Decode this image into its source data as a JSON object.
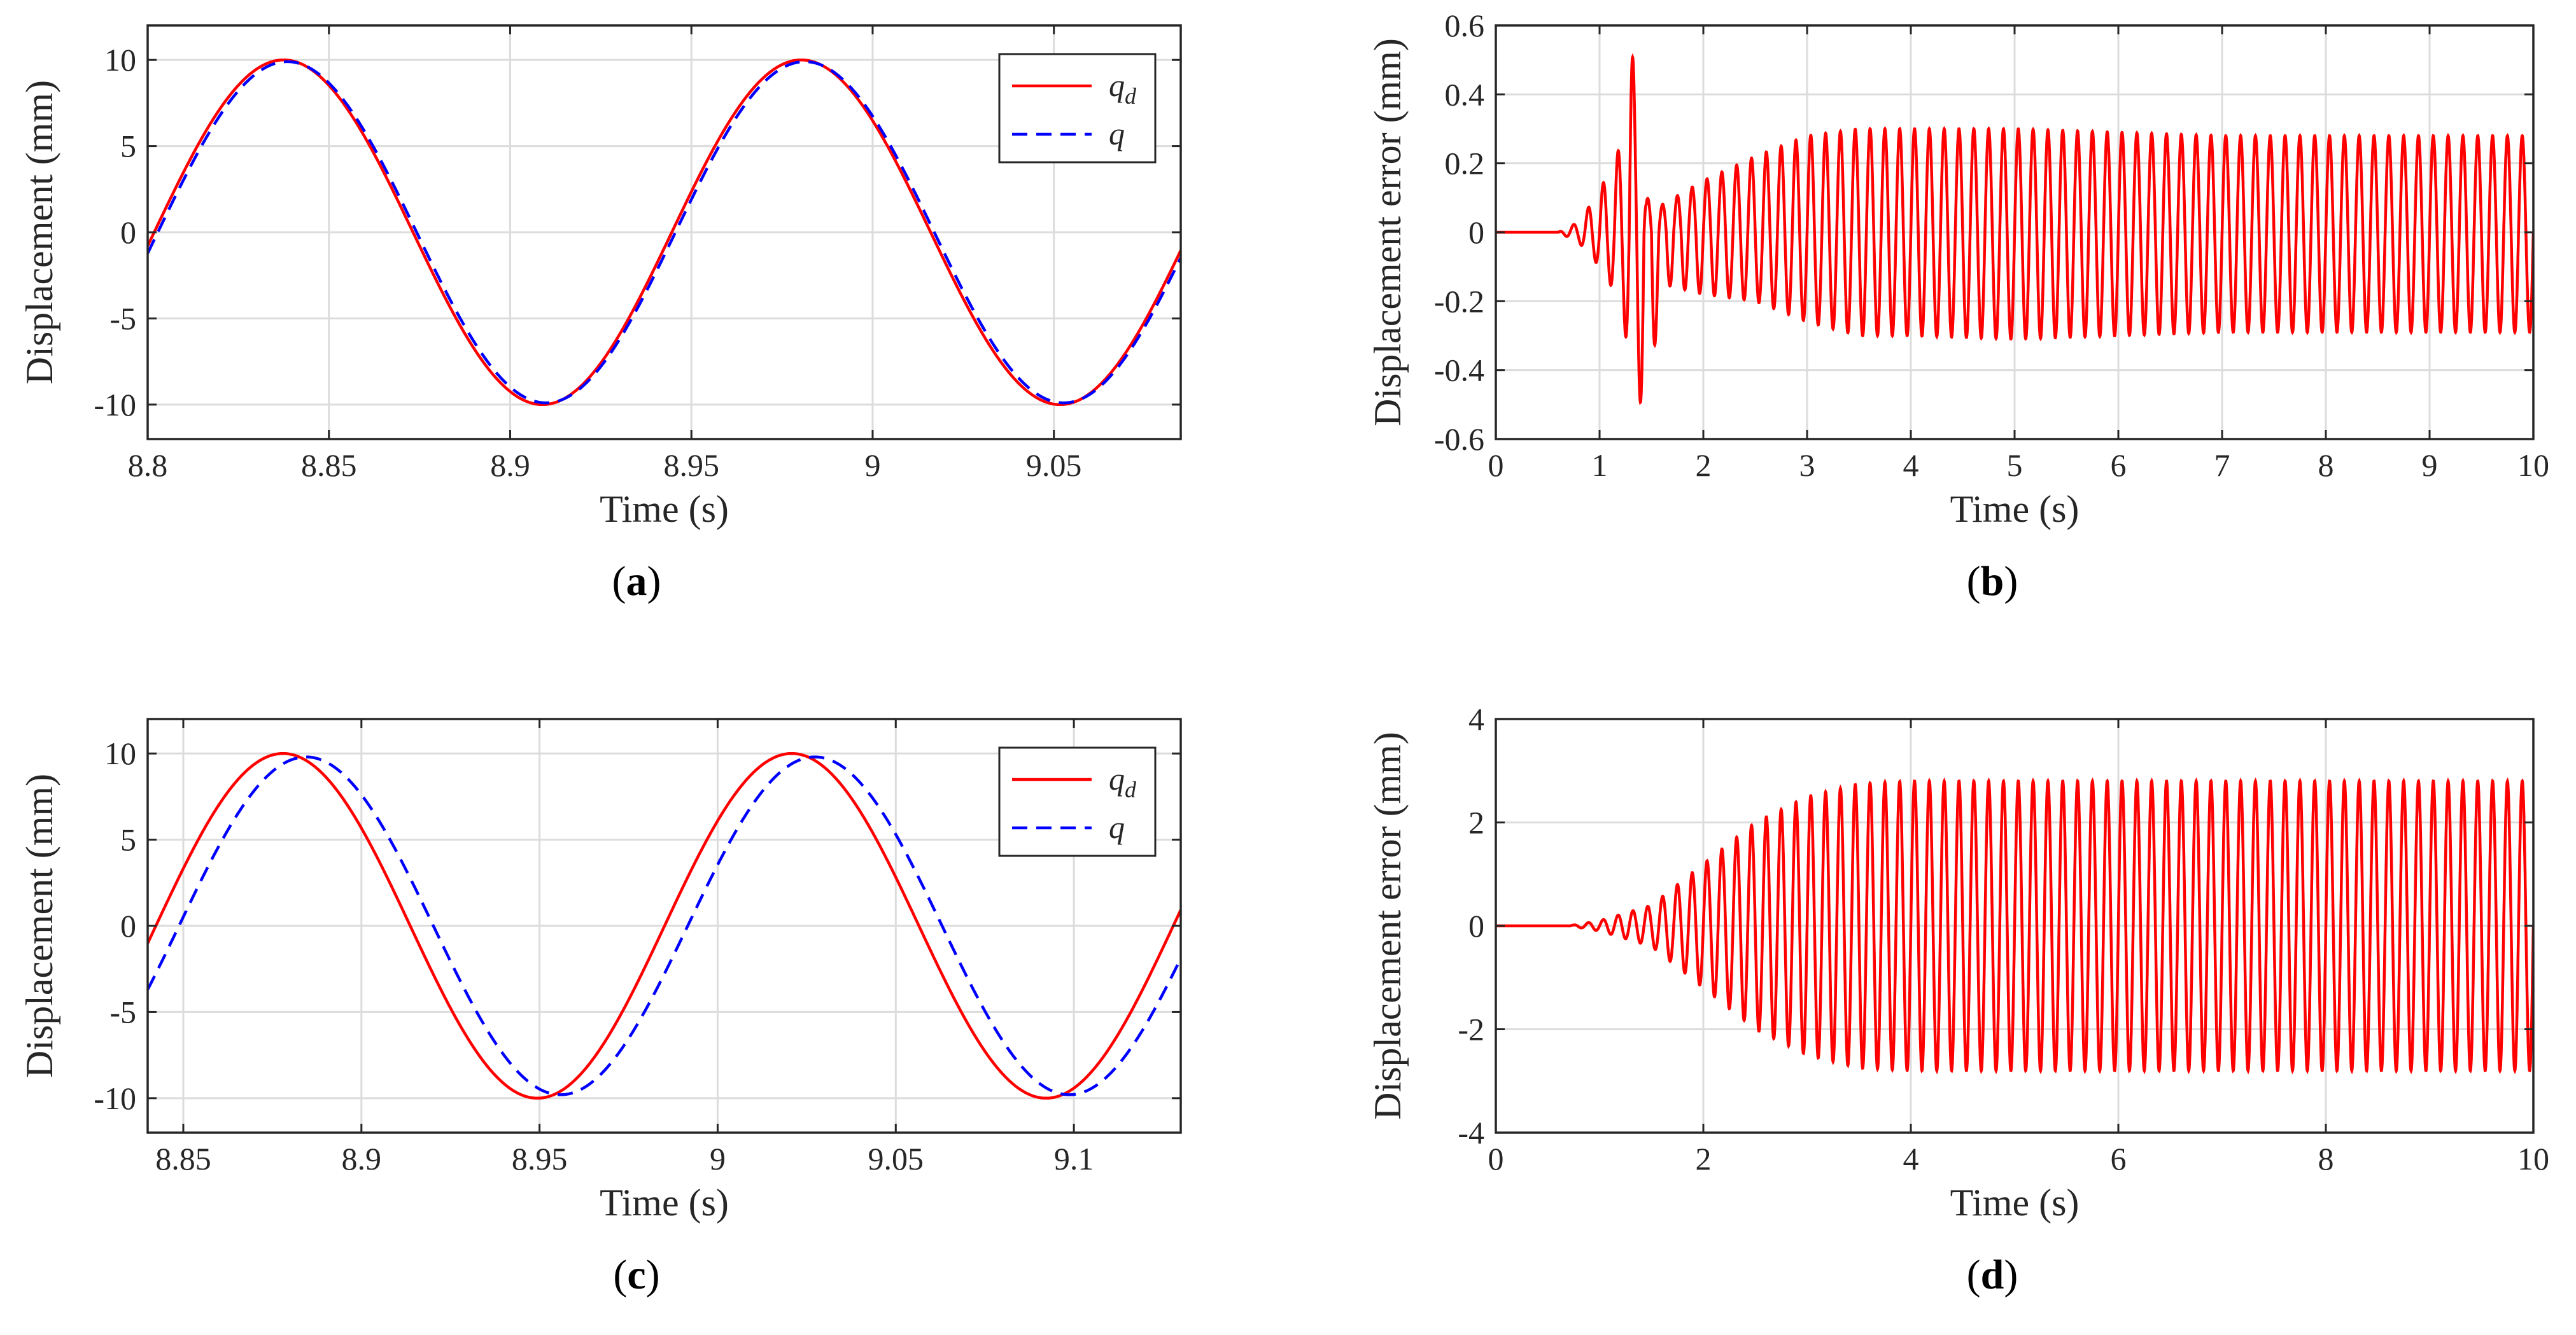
{
  "chart_data": [
    {
      "type": "line",
      "caption_letter": "a",
      "xlabel": "Time (s)",
      "ylabel": "Displacement (mm)",
      "xlim": [
        8.8,
        9.085
      ],
      "ylim": [
        -12,
        12
      ],
      "xticks": [
        8.8,
        8.85,
        8.9,
        8.95,
        9,
        9.05
      ],
      "yticks": [
        -10,
        -5,
        0,
        5,
        10
      ],
      "grid": true,
      "legend": {
        "position": "top-right",
        "entries": [
          {
            "label": "q",
            "subscript": "d"
          },
          {
            "label": "q",
            "subscript": ""
          }
        ]
      },
      "series": [
        {
          "name": "q_d",
          "color": "#ff0000",
          "style": "solid",
          "kind": "sine",
          "amplitude": 10,
          "period": 0.1428,
          "peak_time": 8.8375
        },
        {
          "name": "q",
          "color": "#0000ff",
          "style": "dashed",
          "kind": "sine",
          "amplitude": 9.9,
          "period": 0.1428,
          "peak_time": 8.8385
        }
      ]
    },
    {
      "type": "line",
      "caption_letter": "b",
      "xlabel": "Time (s)",
      "ylabel": "Displacement error (mm)",
      "xlim": [
        0,
        10
      ],
      "ylim": [
        -0.6,
        0.6
      ],
      "xticks": [
        0,
        1,
        2,
        3,
        4,
        5,
        6,
        7,
        8,
        9,
        10
      ],
      "yticks": [
        -0.6,
        -0.4,
        -0.2,
        0,
        0.2,
        0.4,
        0.6
      ],
      "grid": true,
      "series": [
        {
          "name": "error",
          "color": "#ff0000",
          "style": "solid",
          "kind": "envelope_osc",
          "frequency": 7,
          "envelope_t": [
            0,
            0.6,
            0.8,
            1.0,
            1.2,
            1.3,
            1.45,
            1.6,
            2.0,
            2.5,
            3.0,
            3.5,
            4.0,
            5.0,
            6.0,
            7.0,
            8.0,
            9.0,
            10.0
          ],
          "envelope_upper": [
            0,
            0,
            0.03,
            0.12,
            0.25,
            0.57,
            0.1,
            0.08,
            0.15,
            0.22,
            0.28,
            0.3,
            0.3,
            0.3,
            0.29,
            0.28,
            0.28,
            0.28,
            0.28
          ],
          "envelope_lower": [
            0,
            0,
            -0.03,
            -0.1,
            -0.2,
            -0.4,
            -0.55,
            -0.15,
            -0.18,
            -0.2,
            -0.26,
            -0.3,
            -0.3,
            -0.31,
            -0.3,
            -0.29,
            -0.29,
            -0.29,
            -0.29
          ]
        }
      ]
    },
    {
      "type": "line",
      "caption_letter": "c",
      "xlabel": "Time (s)",
      "ylabel": "Displacement (mm)",
      "xlim": [
        8.84,
        9.13
      ],
      "ylim": [
        -12,
        12
      ],
      "xticks": [
        8.85,
        8.9,
        8.95,
        9,
        9.05,
        9.1
      ],
      "yticks": [
        -10,
        -5,
        0,
        5,
        10
      ],
      "grid": true,
      "legend": {
        "position": "top-right",
        "entries": [
          {
            "label": "q",
            "subscript": "d"
          },
          {
            "label": "q",
            "subscript": ""
          }
        ]
      },
      "series": [
        {
          "name": "q_d",
          "color": "#ff0000",
          "style": "solid",
          "kind": "sine",
          "amplitude": 10,
          "period": 0.1428,
          "peak_time": 8.878
        },
        {
          "name": "q",
          "color": "#0000ff",
          "style": "dashed",
          "kind": "sine",
          "amplitude": 9.8,
          "period": 0.1428,
          "peak_time": 8.8845
        }
      ]
    },
    {
      "type": "line",
      "caption_letter": "d",
      "xlabel": "Time (s)",
      "ylabel": "Displacement error (mm)",
      "xlim": [
        0,
        10
      ],
      "ylim": [
        -4,
        4
      ],
      "xticks": [
        0,
        2,
        4,
        6,
        8,
        10
      ],
      "yticks": [
        -4,
        -2,
        0,
        2,
        4
      ],
      "grid": true,
      "series": [
        {
          "name": "error",
          "color": "#ff0000",
          "style": "solid",
          "kind": "envelope_osc",
          "frequency": 7,
          "envelope_t": [
            0,
            0.7,
            1.0,
            1.5,
            2.0,
            2.5,
            3.0,
            3.5,
            4.0,
            10.0
          ],
          "envelope_upper": [
            0,
            0,
            0.1,
            0.4,
            1.2,
            2.0,
            2.5,
            2.75,
            2.8,
            2.8
          ],
          "envelope_lower": [
            0,
            0,
            -0.1,
            -0.4,
            -1.2,
            -2.0,
            -2.5,
            -2.75,
            -2.8,
            -2.8
          ]
        }
      ]
    }
  ]
}
